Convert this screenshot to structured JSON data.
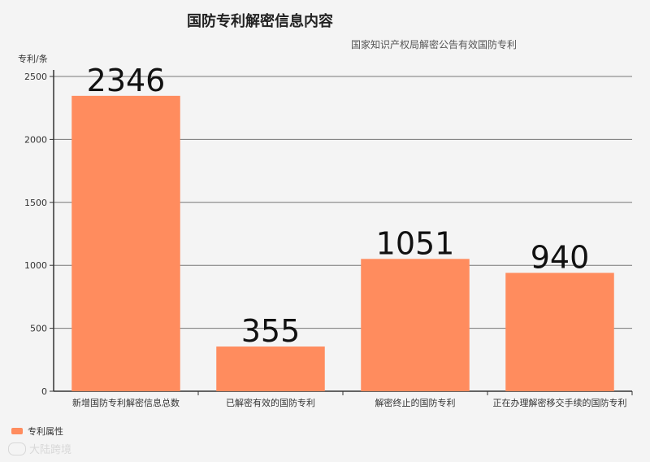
{
  "chart_data": {
    "type": "bar",
    "title": "国防专利解密信息内容",
    "subtitle": "国家知识产权局解密公告有效国防专利",
    "ylabel": "专利/条",
    "ylim": [
      0,
      2500
    ],
    "yticks": [
      0,
      500,
      1000,
      1500,
      2000,
      2500
    ],
    "categories": [
      "新增国防专利解密信息总数",
      "已解密有效的国防专利",
      "解密终止的国防专利",
      "正在办理解密移交手续的国防专利"
    ],
    "series": [
      {
        "name": "专利属性",
        "values": [
          2346,
          355,
          1051,
          940
        ],
        "color": "#ff8c5e"
      }
    ],
    "grid": true,
    "legend": "bottom-left"
  },
  "watermark": "大陆跨境"
}
